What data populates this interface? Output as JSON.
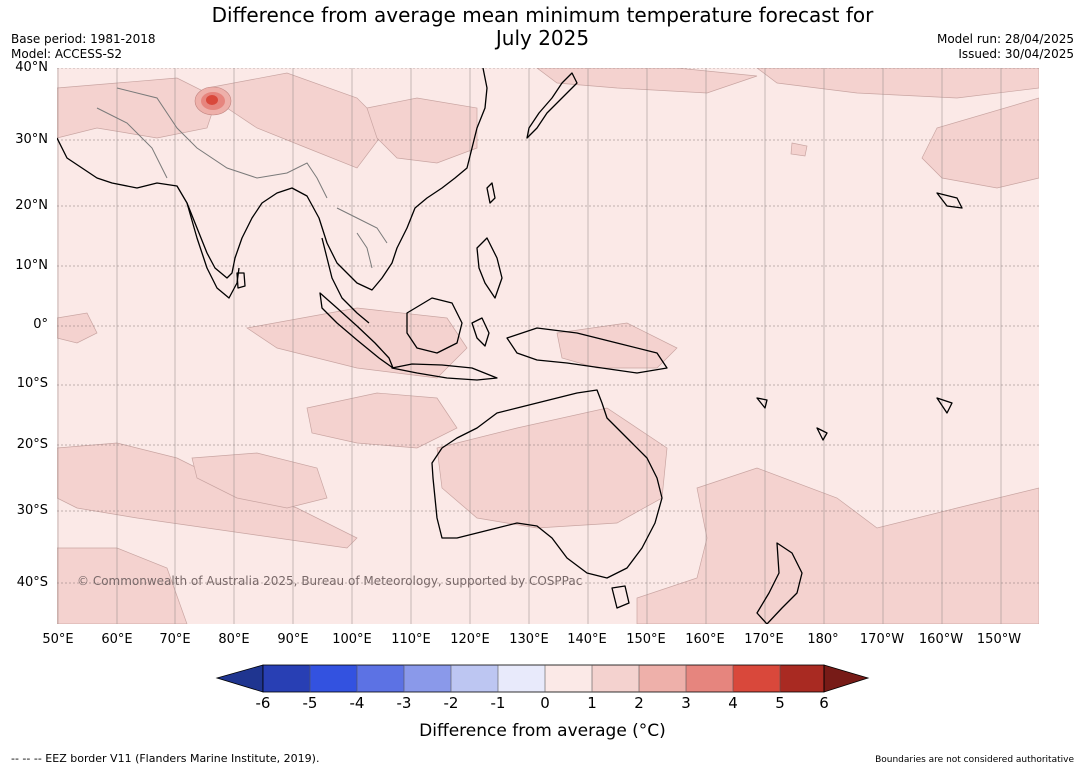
{
  "title": {
    "line1": "Difference from average mean minimum temperature forecast for",
    "line2": "July 2025"
  },
  "meta_left": {
    "base_period": "Base period: 1981-2018",
    "model": "Model: ACCESS-S2"
  },
  "meta_right": {
    "model_run": "Model run: 28/04/2025",
    "issued": "Issued: 30/04/2025"
  },
  "map": {
    "background_color": "#fbe9e7",
    "anomaly_colors": {
      "0_to_1": "#fbe9e7",
      "1_to_2": "#f4d2cf",
      "2_to_3": "#eeb0aa",
      "3_to_4": "#e6857e",
      "4_to_5": "#d9483b"
    },
    "copyright": "© Commonwealth of Australia 2025, Bureau of Meteorology, supported by COSPPac",
    "lat_labels": [
      "40°N",
      "30°N",
      "20°N",
      "10°N",
      "0°",
      "10°S",
      "20°S",
      "30°S",
      "40°S"
    ],
    "lon_labels": [
      "50°E",
      "60°E",
      "70°E",
      "80°E",
      "90°E",
      "100°E",
      "110°E",
      "120°E",
      "130°E",
      "140°E",
      "150°E",
      "160°E",
      "170°E",
      "180°",
      "170°W",
      "160°W",
      "150°W"
    ]
  },
  "colorbar": {
    "ticks": [
      "-6",
      "-5",
      "-4",
      "-3",
      "-2",
      "-1",
      "0",
      "1",
      "2",
      "3",
      "4",
      "5",
      "6"
    ],
    "colors": [
      "#1f3590",
      "#283fb4",
      "#3352e0",
      "#5c72e4",
      "#8a99ea",
      "#bdc6f2",
      "#e8eafb",
      "#fbe9e7",
      "#f4d2cf",
      "#eeb0aa",
      "#e6857e",
      "#d9483b",
      "#a92a22",
      "#771b17"
    ],
    "label": "Difference from average (°C)"
  },
  "footer": {
    "left": "--  --  -- EEZ border V11 (Flanders Marine Institute, 2019).",
    "right": "Boundaries are not considered authoritative"
  }
}
